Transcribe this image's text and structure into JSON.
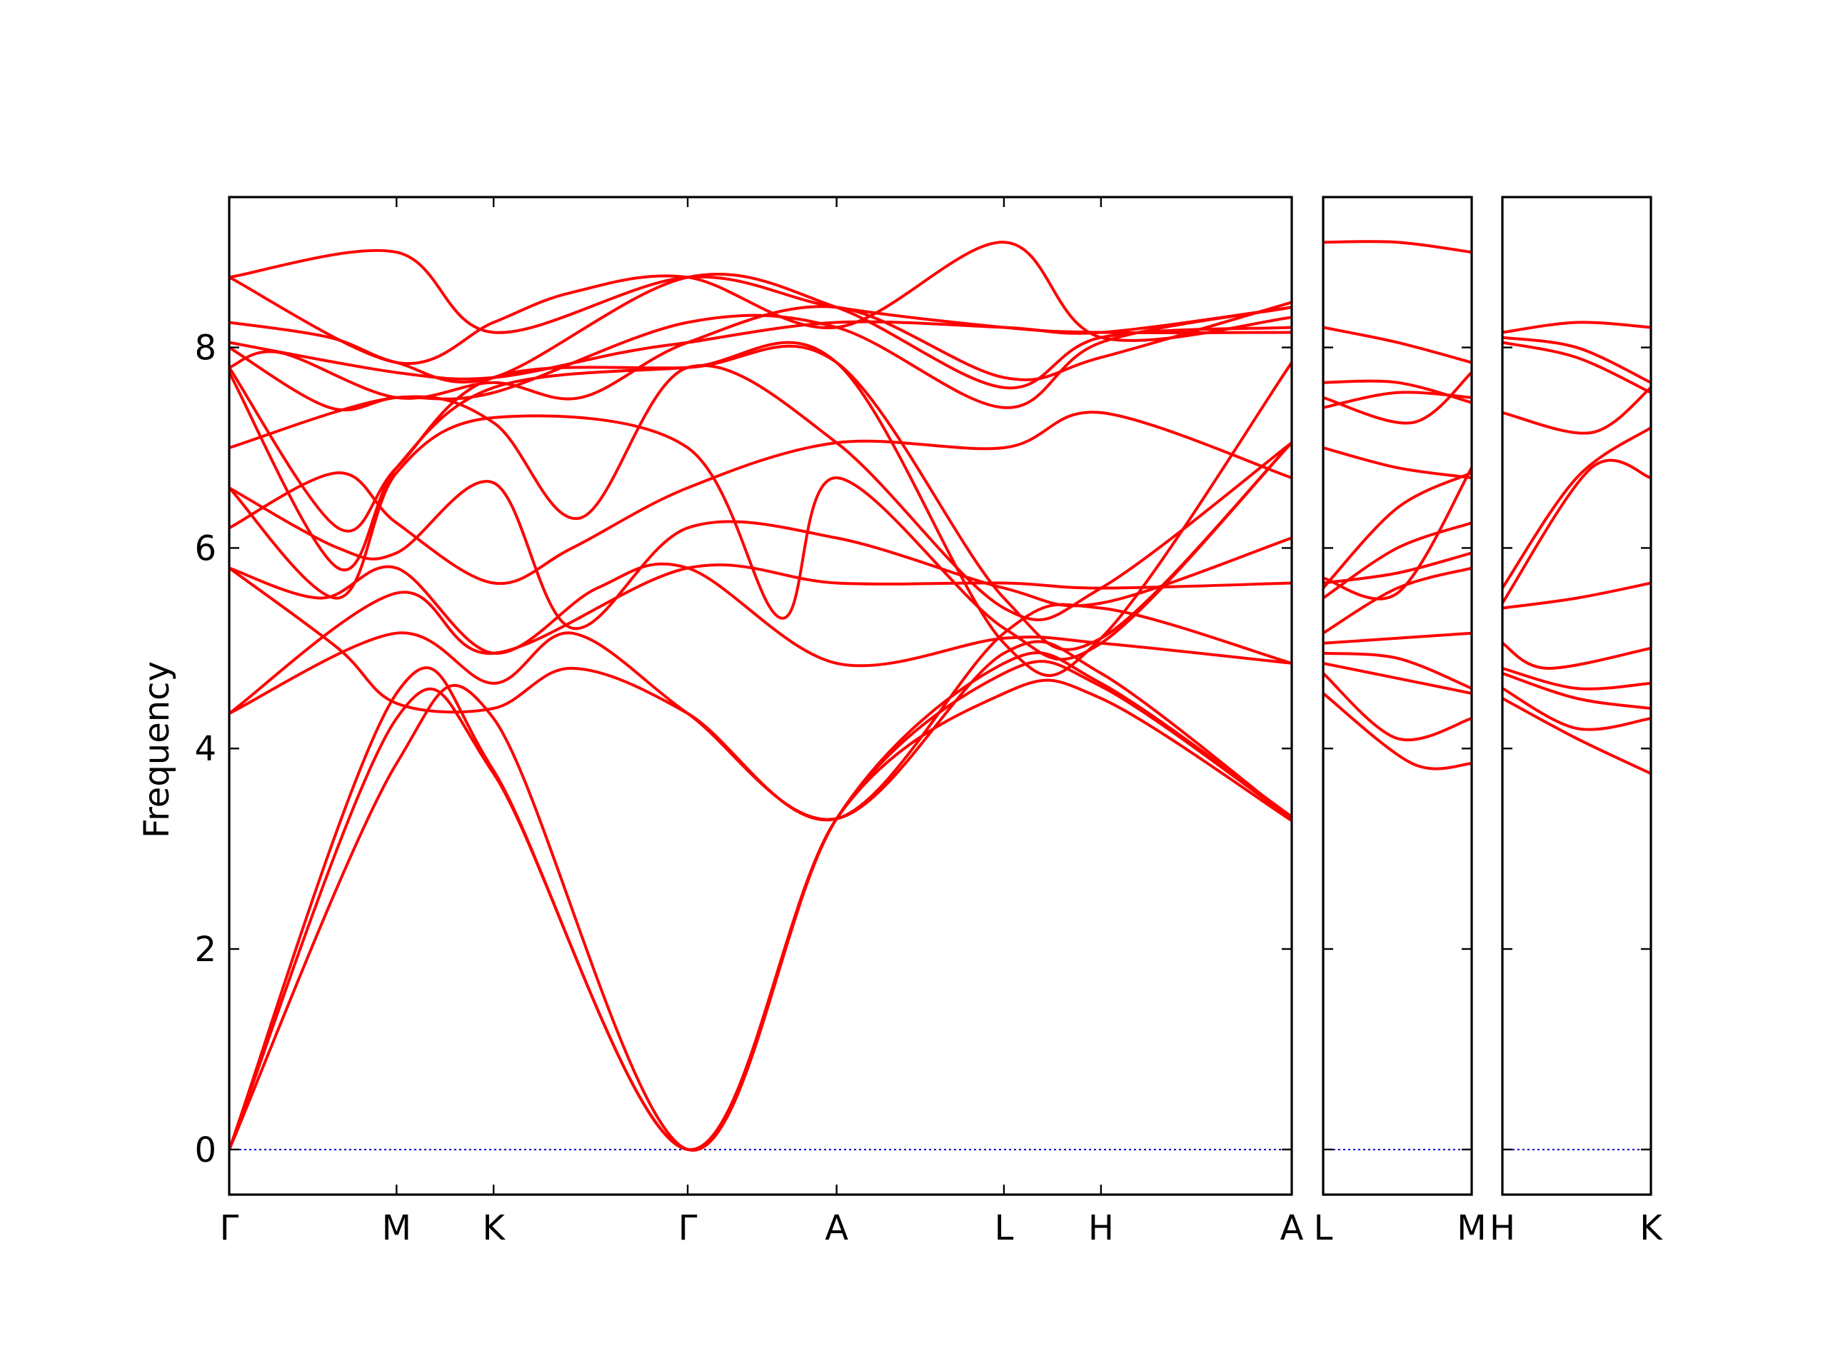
{
  "chart_data": {
    "type": "line",
    "title": "",
    "ylabel": "Frequency",
    "ylim": [
      -0.45,
      9.5
    ],
    "yticks": [
      0,
      2,
      4,
      6,
      8
    ],
    "grid": false,
    "band_color": "#ff0000",
    "zero_line_color": "#0000cc",
    "panels": [
      {
        "id": "main",
        "x_domain": [
          0,
          6.35
        ],
        "labels": [
          {
            "x": 0.0,
            "text": "Γ"
          },
          {
            "x": 1.0,
            "text": "M"
          },
          {
            "x": 1.58,
            "text": "K"
          },
          {
            "x": 2.74,
            "text": "Γ"
          },
          {
            "x": 3.63,
            "text": "A"
          },
          {
            "x": 4.63,
            "text": "L"
          },
          {
            "x": 5.21,
            "text": "H"
          },
          {
            "x": 6.35,
            "text": "A"
          }
        ],
        "bands": [
          [
            [
              0,
              0
            ],
            [
              1.0,
              3.85
            ],
            [
              1.58,
              4.3
            ],
            [
              2.74,
              0
            ],
            [
              3.63,
              3.3
            ],
            [
              4.63,
              4.75
            ],
            [
              5.21,
              4.62
            ],
            [
              6.35,
              3.3
            ]
          ],
          [
            [
              0,
              0
            ],
            [
              1.0,
              4.3
            ],
            [
              1.58,
              3.75
            ],
            [
              2.74,
              0
            ],
            [
              3.63,
              3.3
            ],
            [
              4.63,
              4.55
            ],
            [
              5.21,
              4.5
            ],
            [
              6.35,
              3.28
            ]
          ],
          [
            [
              0,
              0
            ],
            [
              1.0,
              4.55
            ],
            [
              1.58,
              3.78
            ],
            [
              2.74,
              0
            ],
            [
              3.63,
              3.3
            ],
            [
              4.63,
              4.85
            ],
            [
              5.21,
              4.65
            ],
            [
              6.35,
              3.32
            ]
          ],
          [
            [
              0,
              4.35
            ],
            [
              1.0,
              5.15
            ],
            [
              1.58,
              4.65
            ],
            [
              2.05,
              5.15
            ],
            [
              2.74,
              4.35
            ],
            [
              3.63,
              3.3
            ],
            [
              4.63,
              4.95
            ],
            [
              5.21,
              4.75
            ],
            [
              6.35,
              3.3
            ]
          ],
          [
            [
              0,
              4.35
            ],
            [
              1.0,
              5.55
            ],
            [
              1.58,
              4.95
            ],
            [
              2.74,
              5.8
            ],
            [
              3.63,
              5.65
            ],
            [
              4.63,
              5.65
            ],
            [
              5.21,
              5.6
            ],
            [
              6.35,
              5.65
            ]
          ],
          [
            [
              0,
              5.8
            ],
            [
              0.55,
              5.5
            ],
            [
              1.0,
              5.8
            ],
            [
              1.58,
              4.95
            ],
            [
              2.2,
              5.6
            ],
            [
              2.74,
              5.8
            ],
            [
              3.63,
              4.85
            ],
            [
              4.63,
              5.1
            ],
            [
              5.21,
              5.05
            ],
            [
              6.35,
              4.85
            ]
          ],
          [
            [
              0,
              5.8
            ],
            [
              0.65,
              5.0
            ],
            [
              1.0,
              4.45
            ],
            [
              1.58,
              4.4
            ],
            [
              2.05,
              4.8
            ],
            [
              2.74,
              4.35
            ],
            [
              3.63,
              3.3
            ],
            [
              4.63,
              5.15
            ],
            [
              5.21,
              5.4
            ],
            [
              6.35,
              4.85
            ]
          ],
          [
            [
              0,
              6.2
            ],
            [
              0.65,
              6.75
            ],
            [
              1.0,
              6.25
            ],
            [
              1.58,
              5.65
            ],
            [
              2.05,
              6.0
            ],
            [
              2.74,
              6.6
            ],
            [
              3.63,
              7.05
            ],
            [
              4.63,
              7.0
            ],
            [
              5.21,
              7.35
            ],
            [
              6.35,
              6.7
            ]
          ],
          [
            [
              0,
              6.6
            ],
            [
              0.65,
              6.0
            ],
            [
              1.0,
              5.95
            ],
            [
              1.58,
              6.65
            ],
            [
              2.05,
              5.2
            ],
            [
              2.74,
              6.2
            ],
            [
              3.63,
              6.1
            ],
            [
              4.63,
              5.6
            ],
            [
              5.21,
              5.45
            ],
            [
              6.35,
              6.1
            ]
          ],
          [
            [
              0,
              6.6
            ],
            [
              0.65,
              5.5
            ],
            [
              1.0,
              6.75
            ],
            [
              1.58,
              7.3
            ],
            [
              2.74,
              7.0
            ],
            [
              3.3,
              5.3
            ],
            [
              3.63,
              6.7
            ],
            [
              4.63,
              5.2
            ],
            [
              5.21,
              5.05
            ],
            [
              6.35,
              7.05
            ]
          ],
          [
            [
              0,
              7.0
            ],
            [
              1.0,
              7.5
            ],
            [
              1.58,
              7.25
            ],
            [
              2.1,
              6.3
            ],
            [
              2.74,
              7.8
            ],
            [
              3.63,
              7.05
            ],
            [
              4.63,
              5.4
            ],
            [
              5.21,
              5.6
            ],
            [
              6.35,
              7.05
            ]
          ],
          [
            [
              0,
              7.75
            ],
            [
              0.65,
              5.8
            ],
            [
              1.0,
              6.8
            ],
            [
              1.58,
              7.6
            ],
            [
              2.74,
              7.8
            ],
            [
              3.63,
              7.85
            ],
            [
              4.63,
              5.05
            ],
            [
              5.21,
              5.1
            ],
            [
              6.35,
              7.85
            ]
          ],
          [
            [
              0,
              7.8
            ],
            [
              0.65,
              6.2
            ],
            [
              1.0,
              6.8
            ],
            [
              1.58,
              7.7
            ],
            [
              2.74,
              7.8
            ],
            [
              3.63,
              7.85
            ],
            [
              4.63,
              5.5
            ],
            [
              5.21,
              5.1
            ],
            [
              6.35,
              7.05
            ]
          ],
          [
            [
              0,
              7.8
            ],
            [
              0.3,
              7.95
            ],
            [
              1.0,
              7.5
            ],
            [
              1.58,
              7.65
            ],
            [
              2.1,
              7.5
            ],
            [
              2.74,
              8.05
            ],
            [
              3.63,
              8.4
            ],
            [
              4.63,
              7.7
            ],
            [
              5.21,
              7.9
            ],
            [
              6.35,
              8.45
            ]
          ],
          [
            [
              0,
              8.0
            ],
            [
              0.6,
              7.4
            ],
            [
              1.0,
              7.5
            ],
            [
              1.58,
              7.55
            ],
            [
              2.74,
              8.25
            ],
            [
              3.63,
              8.2
            ],
            [
              4.63,
              7.4
            ],
            [
              5.21,
              8.05
            ],
            [
              6.35,
              8.4
            ]
          ],
          [
            [
              0,
              8.05
            ],
            [
              1.0,
              7.75
            ],
            [
              1.58,
              7.7
            ],
            [
              2.35,
              7.95
            ],
            [
              2.74,
              8.05
            ],
            [
              3.63,
              8.25
            ],
            [
              4.63,
              8.2
            ],
            [
              5.21,
              8.15
            ],
            [
              6.35,
              8.4
            ]
          ],
          [
            [
              0,
              8.25
            ],
            [
              0.6,
              8.1
            ],
            [
              1.0,
              7.85
            ],
            [
              1.58,
              7.7
            ],
            [
              2.74,
              8.7
            ],
            [
              3.63,
              8.4
            ],
            [
              4.63,
              7.6
            ],
            [
              5.21,
              8.1
            ],
            [
              6.35,
              8.2
            ]
          ],
          [
            [
              0,
              8.7
            ],
            [
              1.0,
              7.85
            ],
            [
              1.58,
              8.25
            ],
            [
              2.05,
              8.55
            ],
            [
              2.74,
              8.7
            ],
            [
              3.63,
              8.2
            ],
            [
              4.63,
              9.05
            ],
            [
              5.21,
              8.1
            ],
            [
              6.35,
              8.3
            ]
          ],
          [
            [
              0,
              8.7
            ],
            [
              1.0,
              8.95
            ],
            [
              1.58,
              8.15
            ],
            [
              2.74,
              8.7
            ],
            [
              3.63,
              8.4
            ],
            [
              4.63,
              8.2
            ],
            [
              5.21,
              8.15
            ],
            [
              6.35,
              8.15
            ]
          ]
        ]
      },
      {
        "id": "left-small",
        "x_domain": [
          0,
          1
        ],
        "labels": [
          {
            "x": 0,
            "text": "L"
          },
          {
            "x": 1,
            "text": "M"
          }
        ],
        "bands": [
          [
            [
              0,
              4.75
            ],
            [
              0.5,
              4.1
            ],
            [
              1,
              4.3
            ]
          ],
          [
            [
              0,
              4.55
            ],
            [
              0.6,
              3.85
            ],
            [
              1,
              3.85
            ]
          ],
          [
            [
              0,
              4.85
            ],
            [
              0.5,
              4.7
            ],
            [
              1,
              4.55
            ]
          ],
          [
            [
              0,
              4.95
            ],
            [
              0.5,
              4.9
            ],
            [
              1,
              4.6
            ]
          ],
          [
            [
              0,
              5.05
            ],
            [
              0.5,
              5.1
            ],
            [
              1,
              5.15
            ]
          ],
          [
            [
              0,
              5.15
            ],
            [
              0.5,
              5.6
            ],
            [
              1,
              5.8
            ]
          ],
          [
            [
              0,
              5.5
            ],
            [
              0.5,
              6.0
            ],
            [
              1,
              6.25
            ]
          ],
          [
            [
              0,
              5.6
            ],
            [
              0.5,
              6.4
            ],
            [
              1,
              6.75
            ]
          ],
          [
            [
              0,
              5.65
            ],
            [
              0.5,
              5.75
            ],
            [
              1,
              5.95
            ]
          ],
          [
            [
              0,
              5.7
            ],
            [
              0.5,
              5.55
            ],
            [
              1,
              6.8
            ]
          ],
          [
            [
              0,
              7.0
            ],
            [
              0.5,
              6.8
            ],
            [
              1,
              6.7
            ]
          ],
          [
            [
              0,
              7.4
            ],
            [
              0.5,
              7.55
            ],
            [
              1,
              7.5
            ]
          ],
          [
            [
              0,
              7.5
            ],
            [
              0.6,
              7.25
            ],
            [
              1,
              7.75
            ]
          ],
          [
            [
              0,
              7.65
            ],
            [
              0.5,
              7.65
            ],
            [
              1,
              7.45
            ]
          ],
          [
            [
              0,
              8.2
            ],
            [
              0.5,
              8.05
            ],
            [
              1,
              7.85
            ]
          ],
          [
            [
              0,
              9.05
            ],
            [
              0.5,
              9.05
            ],
            [
              1,
              8.95
            ]
          ]
        ]
      },
      {
        "id": "right-small",
        "x_domain": [
          0,
          1
        ],
        "labels": [
          {
            "x": 0,
            "text": "H"
          },
          {
            "x": 1,
            "text": "K"
          }
        ],
        "bands": [
          [
            [
              0,
              4.5
            ],
            [
              0.5,
              4.1
            ],
            [
              1,
              3.75
            ]
          ],
          [
            [
              0,
              4.6
            ],
            [
              0.5,
              4.2
            ],
            [
              1,
              4.3
            ]
          ],
          [
            [
              0,
              4.75
            ],
            [
              0.5,
              4.5
            ],
            [
              1,
              4.4
            ]
          ],
          [
            [
              0,
              4.8
            ],
            [
              0.5,
              4.6
            ],
            [
              1,
              4.65
            ]
          ],
          [
            [
              0,
              5.05
            ],
            [
              0.3,
              4.8
            ],
            [
              1,
              5.0
            ]
          ],
          [
            [
              0,
              5.4
            ],
            [
              0.5,
              5.5
            ],
            [
              1,
              5.65
            ]
          ],
          [
            [
              0,
              5.6
            ],
            [
              0.5,
              6.7
            ],
            [
              1,
              7.2
            ]
          ],
          [
            [
              0,
              5.45
            ],
            [
              0.6,
              6.8
            ],
            [
              1,
              6.7
            ]
          ],
          [
            [
              0,
              7.35
            ],
            [
              0.6,
              7.15
            ],
            [
              1,
              7.6
            ]
          ],
          [
            [
              0,
              8.1
            ],
            [
              0.5,
              8.0
            ],
            [
              1,
              7.65
            ]
          ],
          [
            [
              0,
              8.05
            ],
            [
              0.5,
              7.9
            ],
            [
              1,
              7.55
            ]
          ],
          [
            [
              0,
              8.15
            ],
            [
              0.5,
              8.25
            ],
            [
              1,
              8.2
            ]
          ]
        ]
      }
    ]
  }
}
